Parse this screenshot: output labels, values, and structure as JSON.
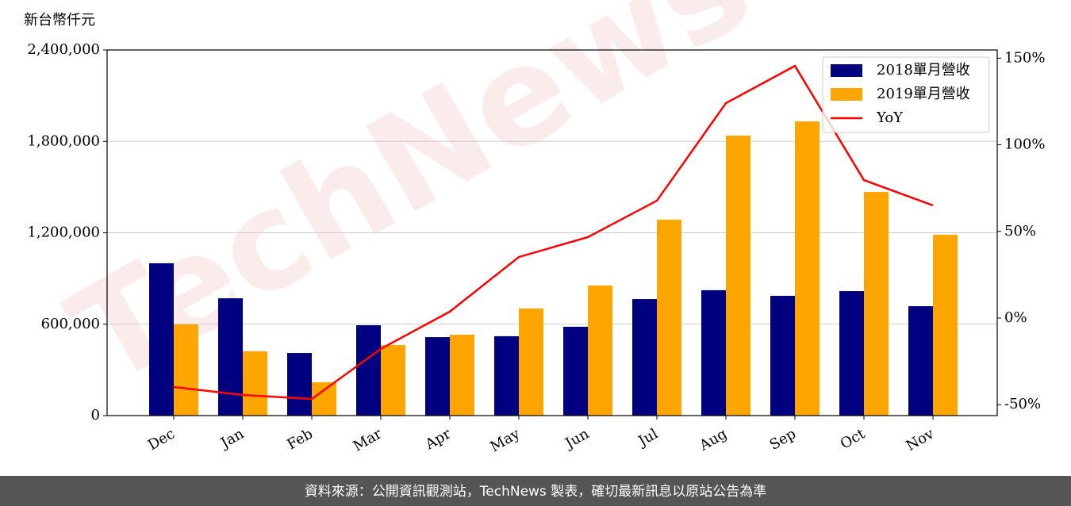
{
  "chart_data": {
    "type": "bar-line",
    "y_label": "新台幣仟元",
    "watermark": "TechNews",
    "footer": "資料來源：公開資訊觀測站，TechNews 製表，確切最新訊息以原站公告為準",
    "categories": [
      "Dec",
      "Jan",
      "Feb",
      "Mar",
      "Apr",
      "May",
      "Jun",
      "Jul",
      "Aug",
      "Sep",
      "Oct",
      "Nov"
    ],
    "series": [
      {
        "name": "2018單月營收",
        "type": "bar",
        "color": "#000080",
        "values": [
          1000000,
          770000,
          411000,
          593000,
          515000,
          521000,
          583000,
          765000,
          823000,
          786000,
          817000,
          718000
        ]
      },
      {
        "name": "2019單月營收",
        "type": "bar",
        "color": "#ffa500",
        "values": [
          599000,
          422000,
          219000,
          463000,
          531000,
          703000,
          854000,
          1286000,
          1838000,
          1931000,
          1468000,
          1187000
        ]
      },
      {
        "name": "YoY",
        "type": "line",
        "axis": "y2",
        "color": "#ff0000",
        "values": [
          -39.8,
          -44.4,
          -46.7,
          -17.8,
          3.7,
          35.2,
          46.7,
          67.7,
          124,
          145.5,
          79.6,
          65
        ]
      }
    ],
    "ylim": [
      0,
      2400000
    ],
    "yticks": [
      0,
      {
        "value": 600000,
        "label": "600,000"
      },
      {
        "value": 1200000,
        "label": "1,200,000"
      },
      {
        "value": 1800000,
        "label": "1,800,000"
      },
      {
        "value": 2400000,
        "label": "2,400,000"
      }
    ],
    "y2lim": [
      -56.3,
      154.7
    ],
    "y2ticks": [
      {
        "value": -50,
        "label": "-50%"
      },
      {
        "value": 0,
        "label": "0%"
      },
      {
        "value": 50,
        "label": "50%"
      },
      {
        "value": 100,
        "label": "100%"
      },
      {
        "value": 150,
        "label": "150%"
      }
    ],
    "grid": true,
    "legend": "upper right"
  }
}
